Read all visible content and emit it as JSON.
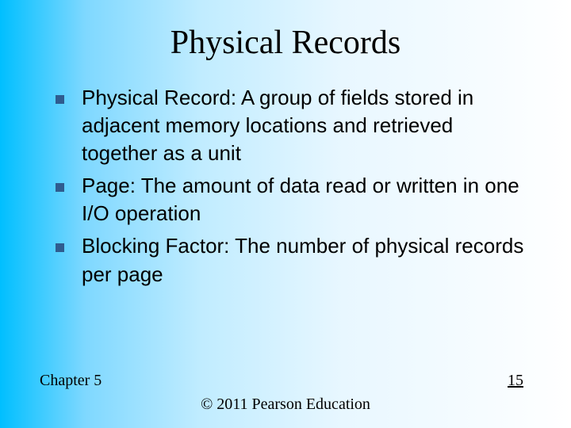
{
  "slide": {
    "title": "Physical Records",
    "bullets": [
      "Physical Record: A group of fields stored in adjacent memory locations and retrieved together as a unit",
      "Page: The amount of data read or written in one I/O operation",
      "Blocking Factor: The number of physical records per page"
    ],
    "footer": {
      "chapter": "Chapter 5",
      "copyright": "© 2011 Pearson Education",
      "page": "15"
    }
  },
  "style": {
    "background_gradient": [
      "#00bfff",
      "#ffffff"
    ],
    "bullet_color": "#2f5c8f",
    "title_fontsize": 42,
    "body_fontsize": 26,
    "footer_fontsize": 20,
    "title_font": "Georgia, Times New Roman, serif",
    "body_font": "Verdana, sans-serif",
    "footer_font": "Times New Roman, serif"
  }
}
